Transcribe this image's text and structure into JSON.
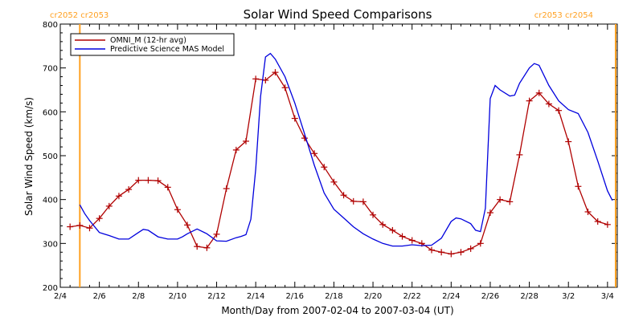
{
  "chart_data": {
    "type": "line",
    "title": "Solar Wind Speed Comparisons",
    "xlabel": "Month/Day from 2007-02-04 to 2007-03-04 (UT)",
    "ylabel": "Solar Wind Speed (km/s)",
    "xlim": [
      "2007-02-04",
      "2007-03-04T12:00"
    ],
    "ylim": [
      200,
      800
    ],
    "x_tick_labels": [
      "2/4",
      "2/6",
      "2/8",
      "2/10",
      "2/12",
      "2/14",
      "2/16",
      "2/18",
      "2/20",
      "2/22",
      "2/24",
      "2/26",
      "2/28",
      "3/2",
      "3/4"
    ],
    "y_tick_labels": [
      "200",
      "300",
      "400",
      "500",
      "600",
      "700",
      "800"
    ],
    "legend": {
      "position": "top-left"
    },
    "carrington_markers": [
      {
        "x": "2007-02-05T00:00",
        "labels": [
          "cr2052",
          "cr2053"
        ],
        "color": "#ffa020"
      },
      {
        "x": "2007-03-04T10:00",
        "labels": [
          "cr2053",
          "cr2054"
        ],
        "color": "#ffa020"
      }
    ],
    "series": [
      {
        "name": "OMNI_M (12-hr avg)",
        "color": "#b00000",
        "marker": "+",
        "x": [
          "2007-02-04T12:00",
          "2007-02-05T00:00",
          "2007-02-05T12:00",
          "2007-02-06T00:00",
          "2007-02-06T12:00",
          "2007-02-07T00:00",
          "2007-02-07T12:00",
          "2007-02-08T00:00",
          "2007-02-08T12:00",
          "2007-02-09T00:00",
          "2007-02-09T12:00",
          "2007-02-10T00:00",
          "2007-02-10T12:00",
          "2007-02-11T00:00",
          "2007-02-11T12:00",
          "2007-02-12T00:00",
          "2007-02-12T12:00",
          "2007-02-13T00:00",
          "2007-02-13T12:00",
          "2007-02-14T00:00",
          "2007-02-14T12:00",
          "2007-02-15T00:00",
          "2007-02-15T12:00",
          "2007-02-16T00:00",
          "2007-02-16T12:00",
          "2007-02-17T00:00",
          "2007-02-17T12:00",
          "2007-02-18T00:00",
          "2007-02-18T12:00",
          "2007-02-19T00:00",
          "2007-02-19T12:00",
          "2007-02-20T00:00",
          "2007-02-20T12:00",
          "2007-02-21T00:00",
          "2007-02-21T12:00",
          "2007-02-22T00:00",
          "2007-02-22T12:00",
          "2007-02-23T00:00",
          "2007-02-23T12:00",
          "2007-02-24T00:00",
          "2007-02-24T12:00",
          "2007-02-25T00:00",
          "2007-02-25T12:00",
          "2007-02-26T00:00",
          "2007-02-26T12:00",
          "2007-02-27T00:00",
          "2007-02-27T12:00",
          "2007-02-28T00:00",
          "2007-02-28T12:00",
          "2007-03-01T00:00",
          "2007-03-01T12:00",
          "2007-03-02T00:00",
          "2007-03-02T12:00",
          "2007-03-03T00:00",
          "2007-03-03T12:00",
          "2007-03-04T00:00"
        ],
        "y": [
          338,
          341,
          335,
          357,
          385,
          408,
          423,
          444,
          444,
          443,
          428,
          377,
          342,
          293,
          290,
          321,
          425,
          513,
          533,
          675,
          672,
          690,
          655,
          585,
          540,
          505,
          474,
          440,
          410,
          396,
          395,
          365,
          343,
          330,
          316,
          307,
          300,
          285,
          280,
          276,
          280,
          288,
          300,
          370,
          400,
          395,
          502,
          625,
          643,
          618,
          603,
          532,
          430,
          372,
          350,
          343
        ]
      },
      {
        "name": "Predictive Science MAS Model",
        "color": "#0000dd",
        "x": [
          "2007-02-05T00:00",
          "2007-02-05T06:00",
          "2007-02-05T12:00",
          "2007-02-06T00:00",
          "2007-02-06T12:00",
          "2007-02-07T00:00",
          "2007-02-07T12:00",
          "2007-02-08T00:00",
          "2007-02-08T06:00",
          "2007-02-08T12:00",
          "2007-02-09T00:00",
          "2007-02-09T12:00",
          "2007-02-10T00:00",
          "2007-02-10T06:00",
          "2007-02-10T12:00",
          "2007-02-11T00:00",
          "2007-02-11T12:00",
          "2007-02-12T00:00",
          "2007-02-12T12:00",
          "2007-02-13T00:00",
          "2007-02-13T06:00",
          "2007-02-13T12:00",
          "2007-02-13T18:00",
          "2007-02-14T00:00",
          "2007-02-14T06:00",
          "2007-02-14T12:00",
          "2007-02-14T18:00",
          "2007-02-15T00:00",
          "2007-02-15T12:00",
          "2007-02-16T00:00",
          "2007-02-16T12:00",
          "2007-02-17T00:00",
          "2007-02-17T12:00",
          "2007-02-18T00:00",
          "2007-02-18T12:00",
          "2007-02-19T00:00",
          "2007-02-19T12:00",
          "2007-02-20T00:00",
          "2007-02-20T12:00",
          "2007-02-21T00:00",
          "2007-02-21T12:00",
          "2007-02-22T00:00",
          "2007-02-22T12:00",
          "2007-02-23T00:00",
          "2007-02-23T12:00",
          "2007-02-24T00:00",
          "2007-02-24T06:00",
          "2007-02-24T12:00",
          "2007-02-25T00:00",
          "2007-02-25T06:00",
          "2007-02-25T12:00",
          "2007-02-25T18:00",
          "2007-02-26T00:00",
          "2007-02-26T06:00",
          "2007-02-26T12:00",
          "2007-02-27T00:00",
          "2007-02-27T06:00",
          "2007-02-27T12:00",
          "2007-02-28T00:00",
          "2007-02-28T06:00",
          "2007-02-28T12:00",
          "2007-03-01T00:00",
          "2007-03-01T12:00",
          "2007-03-02T00:00",
          "2007-03-02T12:00",
          "2007-03-03T00:00",
          "2007-03-03T12:00",
          "2007-03-04T00:00",
          "2007-03-04T06:00"
        ],
        "y": [
          388,
          368,
          352,
          325,
          318,
          310,
          310,
          325,
          332,
          330,
          315,
          310,
          310,
          315,
          322,
          333,
          322,
          306,
          305,
          313,
          316,
          320,
          355,
          470,
          635,
          725,
          733,
          720,
          680,
          620,
          550,
          478,
          415,
          378,
          358,
          338,
          322,
          310,
          300,
          294,
          294,
          297,
          295,
          296,
          312,
          350,
          358,
          356,
          345,
          330,
          327,
          380,
          630,
          660,
          650,
          636,
          638,
          665,
          700,
          710,
          706,
          660,
          625,
          605,
          596,
          553,
          488,
          420,
          398
        ]
      }
    ]
  }
}
